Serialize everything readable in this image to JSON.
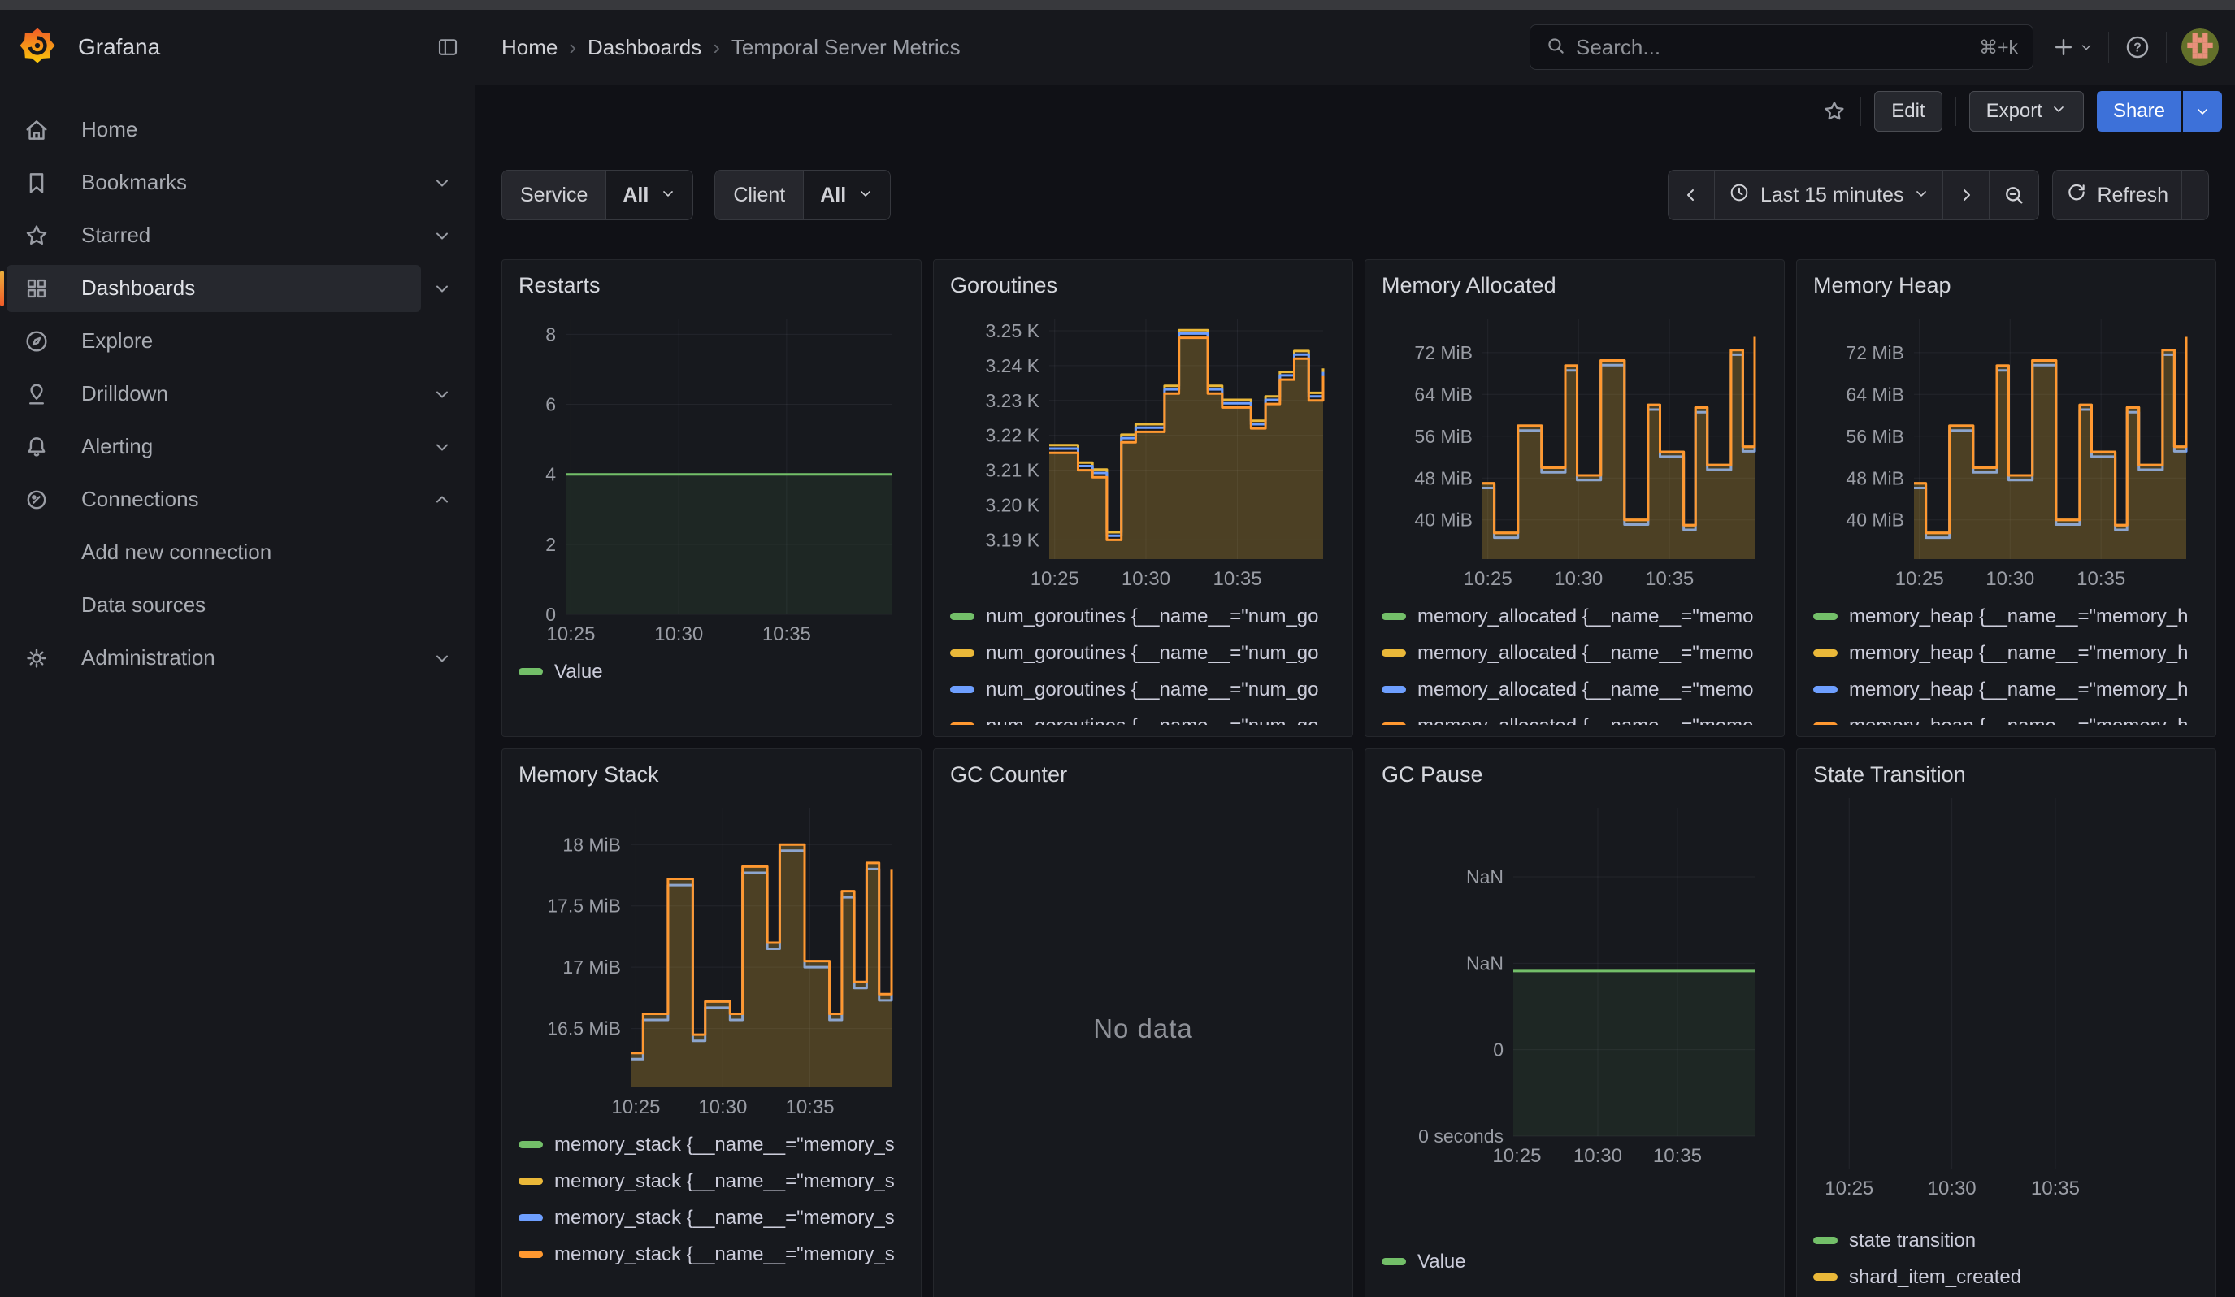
{
  "header": {
    "brand": "Grafana",
    "breadcrumbs": [
      "Home",
      "Dashboards",
      "Temporal Server Metrics"
    ],
    "search": {
      "placeholder": "Search...",
      "shortcut": "⌘+k"
    }
  },
  "toolbar": {
    "edit": "Edit",
    "export": "Export",
    "share": "Share"
  },
  "sidebar": {
    "items": [
      {
        "label": "Home",
        "icon": "home",
        "chevron": "",
        "active": false,
        "child": false
      },
      {
        "label": "Bookmarks",
        "icon": "bookmark",
        "chevron": "down",
        "active": false,
        "child": false
      },
      {
        "label": "Starred",
        "icon": "star",
        "chevron": "down",
        "active": false,
        "child": false
      },
      {
        "label": "Dashboards",
        "icon": "grid",
        "chevron": "down",
        "active": true,
        "child": false
      },
      {
        "label": "Explore",
        "icon": "compass",
        "chevron": "",
        "active": false,
        "child": false
      },
      {
        "label": "Drilldown",
        "icon": "drilldown",
        "chevron": "down",
        "active": false,
        "child": false
      },
      {
        "label": "Alerting",
        "icon": "bell",
        "chevron": "down",
        "active": false,
        "child": false
      },
      {
        "label": "Connections",
        "icon": "plug",
        "chevron": "up",
        "active": false,
        "child": false
      },
      {
        "label": "Add new connection",
        "icon": "",
        "chevron": "",
        "active": false,
        "child": true
      },
      {
        "label": "Data sources",
        "icon": "",
        "chevron": "",
        "active": false,
        "child": true
      },
      {
        "label": "Administration",
        "icon": "gear",
        "chevron": "down",
        "active": false,
        "child": false
      }
    ]
  },
  "filters": [
    {
      "label": "Service",
      "value": "All"
    },
    {
      "label": "Client",
      "value": "All"
    }
  ],
  "timebar": {
    "range_label": "Last 15 minutes",
    "refresh_label": "Refresh"
  },
  "panels": [
    {
      "title": "Restarts",
      "chart": "restarts",
      "legend": [
        {
          "color": "#73BF69",
          "label": "Value"
        }
      ]
    },
    {
      "title": "Goroutines",
      "chart": "goroutines",
      "legend": [
        {
          "color": "#73BF69",
          "label": "num_goroutines {__name__=\"num_go"
        },
        {
          "color": "#EAB839",
          "label": "num_goroutines {__name__=\"num_go"
        },
        {
          "color": "#6E9FFF",
          "label": "num_goroutines {__name__=\"num_go"
        },
        {
          "color": "#FF9830",
          "label": "num_goroutines {__name__=\"num_go"
        }
      ]
    },
    {
      "title": "Memory Allocated",
      "chart": "memory_allocated",
      "legend": [
        {
          "color": "#73BF69",
          "label": "memory_allocated {__name__=\"memo"
        },
        {
          "color": "#EAB839",
          "label": "memory_allocated {__name__=\"memo"
        },
        {
          "color": "#6E9FFF",
          "label": "memory_allocated {__name__=\"memo"
        },
        {
          "color": "#FF9830",
          "label": "memory_allocated {__name__=\"memo"
        }
      ]
    },
    {
      "title": "Memory Heap",
      "chart": "memory_heap",
      "legend": [
        {
          "color": "#73BF69",
          "label": "memory_heap {__name__=\"memory_h"
        },
        {
          "color": "#EAB839",
          "label": "memory_heap {__name__=\"memory_h"
        },
        {
          "color": "#6E9FFF",
          "label": "memory_heap {__name__=\"memory_h"
        },
        {
          "color": "#FF9830",
          "label": "memory_heap {__name__=\"memory_h"
        }
      ]
    },
    {
      "title": "Memory Stack",
      "chart": "memory_stack",
      "legend": [
        {
          "color": "#73BF69",
          "label": "memory_stack {__name__=\"memory_s"
        },
        {
          "color": "#EAB839",
          "label": "memory_stack {__name__=\"memory_s"
        },
        {
          "color": "#6E9FFF",
          "label": "memory_stack {__name__=\"memory_s"
        },
        {
          "color": "#FF9830",
          "label": "memory_stack {__name__=\"memory_s"
        }
      ]
    },
    {
      "title": "GC Counter",
      "chart": "gc_counter",
      "no_data": "No data",
      "legend": []
    },
    {
      "title": "GC Pause",
      "chart": "gc_pause",
      "legend": [
        {
          "color": "#73BF69",
          "label": "Value"
        }
      ]
    },
    {
      "title": "State Transition",
      "chart": "state_transition",
      "legend": [
        {
          "color": "#73BF69",
          "label": "state transition"
        },
        {
          "color": "#EAB839",
          "label": "shard_item_created"
        }
      ]
    }
  ],
  "chart_data": [
    {
      "id": "restarts",
      "type": "area",
      "title": "Restarts",
      "inset": 58,
      "y_domain": [
        0,
        8.45
      ],
      "y_ticks": [
        {
          "v": 0,
          "label": "0"
        },
        {
          "v": 2,
          "label": "2"
        },
        {
          "v": 4,
          "label": "4"
        },
        {
          "v": 6,
          "label": "6"
        },
        {
          "v": 8,
          "label": "8"
        }
      ],
      "x_ticks": [
        {
          "f": 0.016,
          "label": "10:25"
        },
        {
          "f": 0.347,
          "label": "10:30"
        },
        {
          "f": 0.678,
          "label": "10:35"
        }
      ],
      "series": [
        {
          "name": "Value",
          "color": "#73BF69",
          "fill": "rgba(115,191,105,0.09)",
          "values": [
            4,
            4
          ]
        }
      ]
    },
    {
      "id": "goroutines",
      "type": "area",
      "title": "Goroutines",
      "inset": 122,
      "y_domain": [
        3.1845,
        3.2535
      ],
      "y_ticks": [
        {
          "v": 3.19,
          "label": "3.19 K"
        },
        {
          "v": 3.2,
          "label": "3.20 K"
        },
        {
          "v": 3.21,
          "label": "3.21 K"
        },
        {
          "v": 3.22,
          "label": "3.22 K"
        },
        {
          "v": 3.23,
          "label": "3.23 K"
        },
        {
          "v": 3.24,
          "label": "3.24 K"
        },
        {
          "v": 3.25,
          "label": "3.25 K"
        }
      ],
      "x_ticks": [
        {
          "f": 0.02,
          "label": "10:25"
        },
        {
          "f": 0.353,
          "label": "10:30"
        },
        {
          "f": 0.687,
          "label": "10:35"
        }
      ],
      "series": [
        {
          "name": "num_goroutines yellow",
          "color": "#EAB839",
          "values": [
            3.2172,
            3.2172,
            3.2122,
            3.2102,
            3.1922,
            3.2202,
            3.2232,
            3.2232,
            3.2342,
            3.2502,
            3.2502,
            3.2342,
            3.2302,
            3.2302,
            3.2242,
            3.2312,
            3.2382,
            3.2442,
            3.2322,
            3.2392
          ]
        },
        {
          "name": "num_goroutines blue",
          "color": "#6E9FFF",
          "values": [
            3.2162,
            3.2162,
            3.2112,
            3.2092,
            3.1912,
            3.2192,
            3.2222,
            3.2222,
            3.2332,
            3.2492,
            3.2492,
            3.2332,
            3.2292,
            3.2292,
            3.2232,
            3.2302,
            3.2372,
            3.2432,
            3.2312,
            3.2382
          ]
        },
        {
          "name": "num_goroutines orange",
          "color": "#FF9830",
          "fill": "rgba(234,184,57,0.25)",
          "values": [
            3.215,
            3.215,
            3.21,
            3.208,
            3.19,
            3.218,
            3.221,
            3.221,
            3.232,
            3.248,
            3.248,
            3.232,
            3.228,
            3.228,
            3.222,
            3.229,
            3.236,
            3.242,
            3.23,
            3.237
          ]
        }
      ]
    },
    {
      "id": "memory_allocated",
      "type": "area",
      "title": "Memory Allocated",
      "inset": 124,
      "y_domain": [
        32.5,
        78.5
      ],
      "y_ticks": [
        {
          "v": 40,
          "label": "40 MiB"
        },
        {
          "v": 48,
          "label": "48 MiB"
        },
        {
          "v": 56,
          "label": "56 MiB"
        },
        {
          "v": 64,
          "label": "64 MiB"
        },
        {
          "v": 72,
          "label": "72 MiB"
        }
      ],
      "x_ticks": [
        {
          "f": 0.02,
          "label": "10:25"
        },
        {
          "f": 0.353,
          "label": "10:30"
        },
        {
          "f": 0.687,
          "label": "10:35"
        }
      ],
      "series": [
        {
          "name": "memory_allocated yellow",
          "color": "#EAB839",
          "values": [
            47,
            37.5,
            37.5,
            58,
            58,
            50,
            50,
            69.5,
            48.5,
            48.5,
            70.5,
            70.5,
            40,
            40,
            62,
            53,
            53,
            39,
            61.5,
            50.5,
            50.5,
            72.5,
            54,
            75
          ]
        },
        {
          "name": "memory_allocated blue",
          "color": "#6E9FFF",
          "values": [
            46.1,
            36.6,
            36.6,
            57.1,
            57.1,
            49.1,
            49.1,
            68.6,
            47.6,
            47.6,
            69.6,
            69.6,
            39.1,
            39.1,
            61.1,
            52.1,
            52.1,
            38.1,
            60.6,
            49.6,
            49.6,
            71.6,
            53.1,
            74.1
          ]
        },
        {
          "name": "memory_allocated orange",
          "color": "#FF9830",
          "fill": "rgba(234,184,57,0.25)",
          "values": [
            47,
            37.5,
            37.5,
            58,
            58,
            50,
            50,
            69.5,
            48.5,
            48.5,
            70.5,
            70.5,
            40,
            40,
            62,
            53,
            53,
            39,
            61.5,
            50.5,
            50.5,
            72.5,
            54,
            75
          ]
        }
      ]
    },
    {
      "id": "memory_heap",
      "type": "area",
      "title": "Memory Heap",
      "inset": 124,
      "y_domain": [
        32.5,
        78.5
      ],
      "y_ticks": [
        {
          "v": 40,
          "label": "40 MiB"
        },
        {
          "v": 48,
          "label": "48 MiB"
        },
        {
          "v": 56,
          "label": "56 MiB"
        },
        {
          "v": 64,
          "label": "64 MiB"
        },
        {
          "v": 72,
          "label": "72 MiB"
        }
      ],
      "x_ticks": [
        {
          "f": 0.02,
          "label": "10:25"
        },
        {
          "f": 0.353,
          "label": "10:30"
        },
        {
          "f": 0.687,
          "label": "10:35"
        }
      ],
      "series": [
        {
          "name": "memory_heap yellow",
          "color": "#EAB839",
          "values": [
            47,
            37.5,
            37.5,
            58,
            58,
            50,
            50,
            69.5,
            48.5,
            48.5,
            70.5,
            70.5,
            40,
            40,
            62,
            53,
            53,
            39,
            61.5,
            50.5,
            50.5,
            72.5,
            54,
            75
          ]
        },
        {
          "name": "memory_heap blue",
          "color": "#6E9FFF",
          "values": [
            46.1,
            36.6,
            36.6,
            57.1,
            57.1,
            49.1,
            49.1,
            68.6,
            47.6,
            47.6,
            69.6,
            69.6,
            39.1,
            39.1,
            61.1,
            52.1,
            52.1,
            38.1,
            60.6,
            49.6,
            49.6,
            71.6,
            53.1,
            74.1
          ]
        },
        {
          "name": "memory_heap orange",
          "color": "#FF9830",
          "fill": "rgba(234,184,57,0.25)",
          "values": [
            47,
            37.5,
            37.5,
            58,
            58,
            50,
            50,
            69.5,
            48.5,
            48.5,
            70.5,
            70.5,
            40,
            40,
            62,
            53,
            53,
            39,
            61.5,
            50.5,
            50.5,
            72.5,
            54,
            75
          ]
        }
      ]
    },
    {
      "id": "memory_stack",
      "type": "area",
      "title": "Memory Stack",
      "inset": 138,
      "y_domain": [
        16.02,
        18.3
      ],
      "y_ticks": [
        {
          "v": 16.5,
          "label": "16.5 MiB"
        },
        {
          "v": 17,
          "label": "17 MiB"
        },
        {
          "v": 17.5,
          "label": "17.5 MiB"
        },
        {
          "v": 18,
          "label": "18 MiB"
        }
      ],
      "x_ticks": [
        {
          "f": 0.02,
          "label": "10:25"
        },
        {
          "f": 0.353,
          "label": "10:30"
        },
        {
          "f": 0.687,
          "label": "10:35"
        }
      ],
      "series": [
        {
          "name": "memory_stack blue",
          "color": "#6E9FFF",
          "values": [
            16.25,
            16.57,
            16.57,
            17.67,
            17.67,
            16.4,
            16.67,
            16.67,
            16.57,
            17.77,
            17.77,
            17.15,
            17.95,
            17.95,
            17.0,
            17.0,
            16.57,
            17.57,
            16.83,
            17.8,
            16.73,
            17.75
          ]
        },
        {
          "name": "memory_stack orange",
          "color": "#FF9830",
          "fill": "rgba(234,184,57,0.25)",
          "values": [
            16.3,
            16.62,
            16.62,
            17.72,
            17.72,
            16.45,
            16.72,
            16.72,
            16.62,
            17.82,
            17.82,
            17.2,
            18.0,
            18.0,
            17.05,
            17.05,
            16.62,
            17.62,
            16.88,
            17.85,
            16.78,
            17.8
          ]
        }
      ]
    },
    {
      "id": "gc_counter",
      "type": "nodata",
      "title": "GC Counter",
      "no_data_text": "No data"
    },
    {
      "id": "gc_pause",
      "type": "area",
      "title": "GC Pause",
      "inset": 162,
      "y_domain": [
        0,
        3.8
      ],
      "y_ticks": [
        {
          "v": 0,
          "label": "0 seconds"
        },
        {
          "v": 1,
          "label": "0"
        },
        {
          "v": 2,
          "label": "NaN"
        },
        {
          "v": 3,
          "label": "NaN"
        }
      ],
      "x_ticks": [
        {
          "f": 0.015,
          "label": "10:25"
        },
        {
          "f": 0.35,
          "label": "10:30"
        },
        {
          "f": 0.68,
          "label": "10:35"
        }
      ],
      "series": [
        {
          "name": "Value",
          "color": "#73BF69",
          "fill": "rgba(115,191,105,0.09)",
          "values": [
            1.91,
            1.91
          ]
        }
      ]
    },
    {
      "id": "state_transition",
      "type": "empty",
      "title": "State Transition",
      "inset": 14,
      "x_ticks": [
        {
          "f": 0.068,
          "label": "10:25"
        },
        {
          "f": 0.352,
          "label": "10:30"
        },
        {
          "f": 0.638,
          "label": "10:35"
        }
      ]
    }
  ]
}
